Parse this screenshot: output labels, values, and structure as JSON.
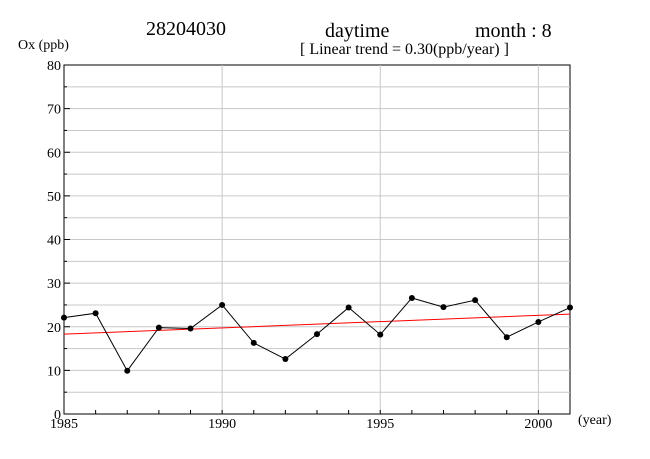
{
  "header": {
    "station": "28204030",
    "period": "daytime",
    "month": "month : 8",
    "trend_label": "[ Linear trend = 0.30(ppb/year) ]"
  },
  "chart_data": {
    "type": "line",
    "title": "28204030",
    "subtitle": "[ Linear trend = 0.30(ppb/year) ]",
    "ylabel": "Ox (ppb)",
    "xlabel": "(year)",
    "xlim": [
      1985,
      2001
    ],
    "ylim": [
      0,
      80
    ],
    "x_ticks": [
      1985,
      1990,
      1995,
      2000
    ],
    "y_ticks": [
      0,
      10,
      20,
      30,
      40,
      50,
      60,
      70,
      80
    ],
    "grid": true,
    "series": [
      {
        "x": [
          1985,
          1986,
          1987,
          1988,
          1989,
          1990,
          1991,
          1992,
          1993,
          1994,
          1995,
          1996,
          1997,
          1998,
          1999,
          2000,
          2001
        ],
        "values": [
          22.1,
          23.1,
          9.9,
          19.8,
          19.6,
          25.0,
          16.3,
          12.6,
          18.3,
          24.4,
          18.2,
          26.6,
          24.5,
          26.1,
          17.6,
          21.1,
          24.4
        ],
        "color": "#000000"
      }
    ],
    "trendline": {
      "y_start": 18.3,
      "y_end": 22.9,
      "slope_per_year": 0.3,
      "color": "#ff0000"
    }
  }
}
